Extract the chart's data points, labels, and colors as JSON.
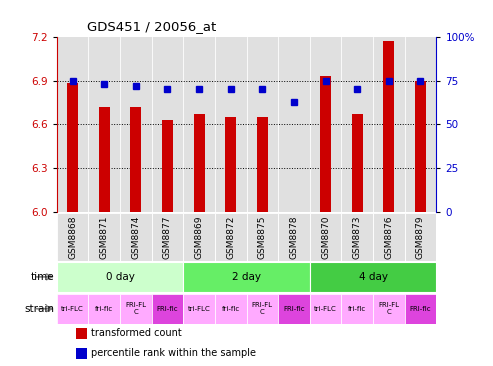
{
  "title": "GDS451 / 20056_at",
  "samples": [
    "GSM8868",
    "GSM8871",
    "GSM8874",
    "GSM8877",
    "GSM8869",
    "GSM8872",
    "GSM8875",
    "GSM8878",
    "GSM8870",
    "GSM8873",
    "GSM8876",
    "GSM8879"
  ],
  "bar_values": [
    6.88,
    6.72,
    6.72,
    6.63,
    6.67,
    6.65,
    6.65,
    6.0,
    6.93,
    6.67,
    7.17,
    6.9
  ],
  "dot_values": [
    75,
    73,
    72,
    70,
    70,
    70,
    70,
    63,
    75,
    70,
    75,
    75
  ],
  "ylim_left": [
    6.0,
    7.2
  ],
  "ylim_right": [
    0,
    100
  ],
  "yticks_left": [
    6.0,
    6.3,
    6.6,
    6.9,
    7.2
  ],
  "yticks_right": [
    0,
    25,
    50,
    75,
    100
  ],
  "ytick_labels_right": [
    "0",
    "25",
    "50",
    "75",
    "100%"
  ],
  "hlines": [
    6.3,
    6.6,
    6.9
  ],
  "bar_color": "#cc0000",
  "dot_color": "#0000cc",
  "bar_bottom": 6.0,
  "time_groups": [
    {
      "label": "0 day",
      "start": 0,
      "end": 4,
      "color": "#ccffcc"
    },
    {
      "label": "2 day",
      "start": 4,
      "end": 8,
      "color": "#66ee66"
    },
    {
      "label": "4 day",
      "start": 8,
      "end": 12,
      "color": "#44cc44"
    }
  ],
  "strain_groups": [
    {
      "label": "tri-FLC",
      "color": "#ffaaff"
    },
    {
      "label": "fri-flc",
      "color": "#ffaaff"
    },
    {
      "label": "FRI-FL\nC",
      "color": "#ffaaff"
    },
    {
      "label": "FRI-flc",
      "color": "#dd44dd"
    },
    {
      "label": "tri-FLC",
      "color": "#ffaaff"
    },
    {
      "label": "fri-flc",
      "color": "#ffaaff"
    },
    {
      "label": "FRI-FL\nC",
      "color": "#ffaaff"
    },
    {
      "label": "FRI-flc",
      "color": "#dd44dd"
    },
    {
      "label": "tri-FLC",
      "color": "#ffaaff"
    },
    {
      "label": "fri-flc",
      "color": "#ffaaff"
    },
    {
      "label": "FRI-FL\nC",
      "color": "#ffaaff"
    },
    {
      "label": "FRI-flc",
      "color": "#dd44dd"
    }
  ],
  "legend_items": [
    {
      "color": "#cc0000",
      "label": "transformed count"
    },
    {
      "color": "#0000cc",
      "label": "percentile rank within the sample"
    }
  ],
  "axis_bg": "#e0e0e0",
  "plot_bg": "#ffffff",
  "bar_width": 0.35,
  "time_label": "time",
  "strain_label": "strain"
}
